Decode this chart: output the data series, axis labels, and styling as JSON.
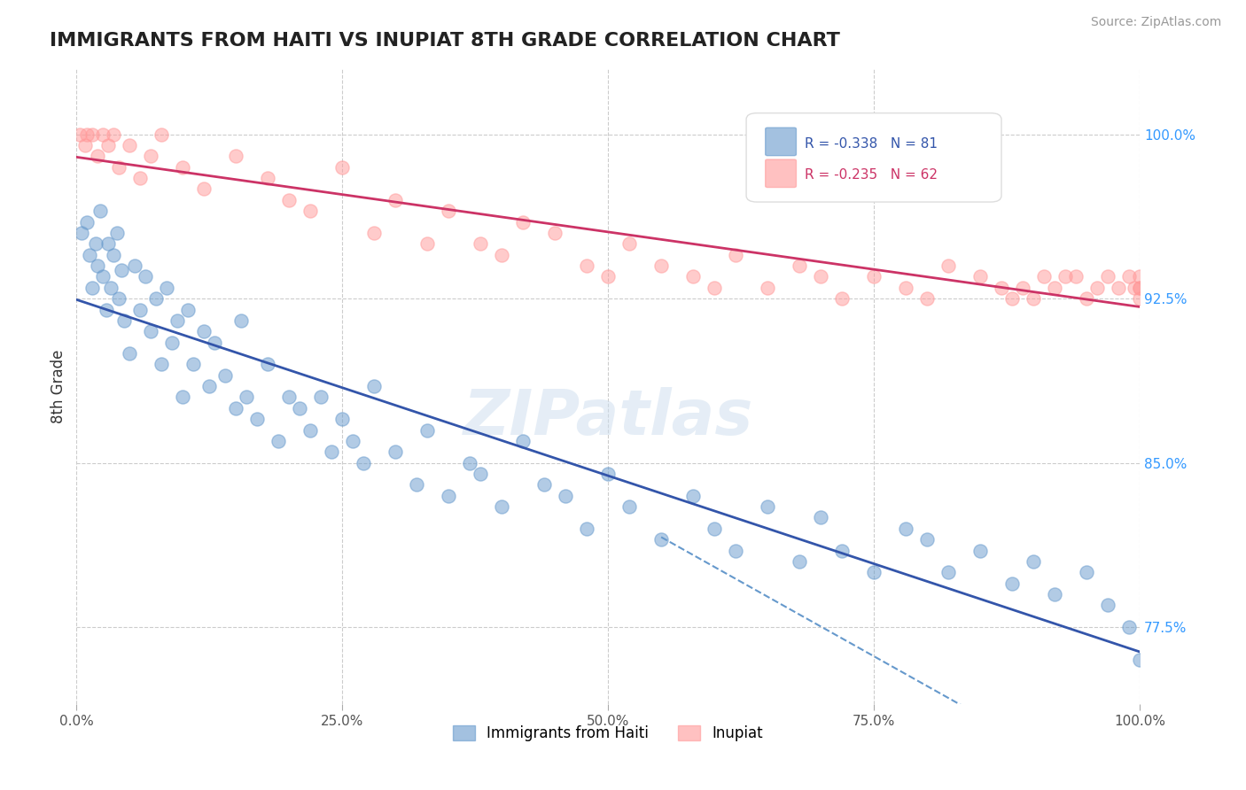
{
  "title": "IMMIGRANTS FROM HAITI VS INUPIAT 8TH GRADE CORRELATION CHART",
  "source_text": "Source: ZipAtlas.com",
  "xlabel": "",
  "ylabel": "8th Grade",
  "xlim": [
    0.0,
    100.0
  ],
  "ylim": [
    74.0,
    103.0
  ],
  "yticks": [
    77.5,
    85.0,
    92.5,
    100.0
  ],
  "xticks": [
    0.0,
    25.0,
    50.0,
    75.0,
    100.0
  ],
  "legend_blue_r": "R = -0.338",
  "legend_blue_n": "N = 81",
  "legend_pink_r": "R = -0.235",
  "legend_pink_n": "N = 62",
  "legend_blue_label": "Immigrants from Haiti",
  "legend_pink_label": "Inupiat",
  "blue_color": "#6699CC",
  "pink_color": "#FF9999",
  "trend_blue_color": "#3355AA",
  "trend_pink_color": "#CC3366",
  "watermark": "ZIPatlas",
  "blue_scatter_x": [
    0.5,
    1.0,
    1.2,
    1.5,
    1.8,
    2.0,
    2.2,
    2.5,
    2.8,
    3.0,
    3.2,
    3.5,
    3.8,
    4.0,
    4.2,
    4.5,
    5.0,
    5.5,
    6.0,
    6.5,
    7.0,
    7.5,
    8.0,
    8.5,
    9.0,
    9.5,
    10.0,
    10.5,
    11.0,
    12.0,
    12.5,
    13.0,
    14.0,
    15.0,
    15.5,
    16.0,
    17.0,
    18.0,
    19.0,
    20.0,
    21.0,
    22.0,
    23.0,
    24.0,
    25.0,
    26.0,
    27.0,
    28.0,
    30.0,
    32.0,
    33.0,
    35.0,
    37.0,
    38.0,
    40.0,
    42.0,
    44.0,
    46.0,
    48.0,
    50.0,
    52.0,
    55.0,
    58.0,
    60.0,
    62.0,
    65.0,
    68.0,
    70.0,
    72.0,
    75.0,
    78.0,
    80.0,
    82.0,
    85.0,
    88.0,
    90.0,
    92.0,
    95.0,
    97.0,
    99.0,
    100.0
  ],
  "blue_scatter_y": [
    95.5,
    96.0,
    94.5,
    93.0,
    95.0,
    94.0,
    96.5,
    93.5,
    92.0,
    95.0,
    93.0,
    94.5,
    95.5,
    92.5,
    93.8,
    91.5,
    90.0,
    94.0,
    92.0,
    93.5,
    91.0,
    92.5,
    89.5,
    93.0,
    90.5,
    91.5,
    88.0,
    92.0,
    89.5,
    91.0,
    88.5,
    90.5,
    89.0,
    87.5,
    91.5,
    88.0,
    87.0,
    89.5,
    86.0,
    88.0,
    87.5,
    86.5,
    88.0,
    85.5,
    87.0,
    86.0,
    85.0,
    88.5,
    85.5,
    84.0,
    86.5,
    83.5,
    85.0,
    84.5,
    83.0,
    86.0,
    84.0,
    83.5,
    82.0,
    84.5,
    83.0,
    81.5,
    83.5,
    82.0,
    81.0,
    83.0,
    80.5,
    82.5,
    81.0,
    80.0,
    82.0,
    81.5,
    80.0,
    81.0,
    79.5,
    80.5,
    79.0,
    80.0,
    78.5,
    77.5,
    76.0
  ],
  "pink_scatter_x": [
    0.3,
    0.8,
    1.0,
    1.5,
    2.0,
    2.5,
    3.0,
    3.5,
    4.0,
    5.0,
    6.0,
    7.0,
    8.0,
    10.0,
    12.0,
    15.0,
    18.0,
    20.0,
    22.0,
    25.0,
    28.0,
    30.0,
    33.0,
    35.0,
    38.0,
    40.0,
    42.0,
    45.0,
    48.0,
    50.0,
    52.0,
    55.0,
    58.0,
    60.0,
    62.0,
    65.0,
    68.0,
    70.0,
    72.0,
    75.0,
    78.0,
    80.0,
    82.0,
    85.0,
    87.0,
    88.0,
    89.0,
    90.0,
    91.0,
    92.0,
    93.0,
    94.0,
    95.0,
    96.0,
    97.0,
    98.0,
    99.0,
    99.5,
    100.0,
    100.0,
    100.0,
    100.0
  ],
  "pink_scatter_y": [
    100.0,
    99.5,
    100.0,
    100.0,
    99.0,
    100.0,
    99.5,
    100.0,
    98.5,
    99.5,
    98.0,
    99.0,
    100.0,
    98.5,
    97.5,
    99.0,
    98.0,
    97.0,
    96.5,
    98.5,
    95.5,
    97.0,
    95.0,
    96.5,
    95.0,
    94.5,
    96.0,
    95.5,
    94.0,
    93.5,
    95.0,
    94.0,
    93.5,
    93.0,
    94.5,
    93.0,
    94.0,
    93.5,
    92.5,
    93.5,
    93.0,
    92.5,
    94.0,
    93.5,
    93.0,
    92.5,
    93.0,
    92.5,
    93.5,
    93.0,
    93.5,
    93.5,
    92.5,
    93.0,
    93.5,
    93.0,
    93.5,
    93.0,
    93.5,
    93.0,
    92.5,
    93.0
  ]
}
